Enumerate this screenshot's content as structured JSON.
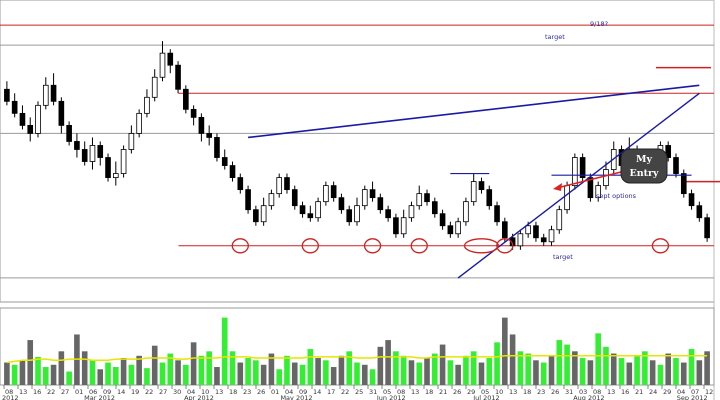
{
  "chart_data": {
    "type": "candlestick",
    "colors": {
      "candle": "#000000",
      "resistance": "#cc2222",
      "trendline": "#1a1aa6",
      "annotation_text": "#2a2aa8",
      "volume_up": "#33ee33",
      "volume_down": "#666666",
      "volume_avg": "#e6e600",
      "callout_bg": "#444444",
      "arrow": "#dd2222",
      "circle": "#cc2222"
    },
    "price_ylim": [
      0,
      300
    ],
    "volume_ylim": [
      0,
      100
    ],
    "candles": [
      [
        205,
        190,
        215,
        185
      ],
      [
        190,
        175,
        200,
        170
      ],
      [
        175,
        160,
        185,
        155
      ],
      [
        160,
        150,
        170,
        140
      ],
      [
        150,
        185,
        190,
        145
      ],
      [
        185,
        210,
        220,
        180
      ],
      [
        210,
        190,
        225,
        185
      ],
      [
        190,
        160,
        195,
        150
      ],
      [
        160,
        140,
        165,
        135
      ],
      [
        140,
        130,
        150,
        120
      ],
      [
        130,
        115,
        140,
        110
      ],
      [
        115,
        135,
        145,
        105
      ],
      [
        135,
        120,
        140,
        110
      ],
      [
        120,
        95,
        125,
        90
      ],
      [
        95,
        100,
        115,
        85
      ],
      [
        100,
        130,
        135,
        95
      ],
      [
        130,
        150,
        160,
        125
      ],
      [
        150,
        175,
        180,
        145
      ],
      [
        175,
        195,
        205,
        170
      ],
      [
        195,
        220,
        230,
        190
      ],
      [
        220,
        250,
        265,
        215
      ],
      [
        250,
        235,
        255,
        225
      ],
      [
        235,
        205,
        240,
        200
      ],
      [
        205,
        180,
        210,
        175
      ],
      [
        180,
        170,
        185,
        160
      ],
      [
        170,
        150,
        175,
        140
      ],
      [
        150,
        145,
        160,
        135
      ],
      [
        145,
        120,
        150,
        115
      ],
      [
        120,
        110,
        130,
        105
      ],
      [
        110,
        95,
        115,
        90
      ],
      [
        95,
        80,
        100,
        75
      ],
      [
        80,
        55,
        85,
        50
      ],
      [
        55,
        40,
        60,
        35
      ],
      [
        40,
        60,
        70,
        35
      ],
      [
        60,
        75,
        80,
        55
      ],
      [
        75,
        95,
        100,
        70
      ],
      [
        95,
        80,
        100,
        75
      ],
      [
        80,
        60,
        85,
        55
      ],
      [
        60,
        50,
        65,
        45
      ],
      [
        50,
        45,
        60,
        40
      ],
      [
        45,
        65,
        70,
        40
      ],
      [
        65,
        85,
        90,
        60
      ],
      [
        85,
        70,
        90,
        65
      ],
      [
        70,
        55,
        75,
        50
      ],
      [
        55,
        40,
        60,
        35
      ],
      [
        40,
        60,
        70,
        35
      ],
      [
        60,
        80,
        85,
        55
      ],
      [
        80,
        70,
        90,
        65
      ],
      [
        70,
        55,
        75,
        50
      ],
      [
        55,
        45,
        60,
        40
      ],
      [
        45,
        25,
        50,
        20
      ],
      [
        25,
        45,
        55,
        20
      ],
      [
        45,
        60,
        65,
        40
      ],
      [
        60,
        75,
        85,
        55
      ],
      [
        75,
        65,
        80,
        60
      ],
      [
        65,
        50,
        70,
        45
      ],
      [
        50,
        35,
        55,
        30
      ],
      [
        35,
        25,
        40,
        20
      ],
      [
        25,
        40,
        45,
        20
      ],
      [
        40,
        65,
        70,
        35
      ],
      [
        65,
        90,
        100,
        60
      ],
      [
        90,
        80,
        95,
        75
      ],
      [
        80,
        60,
        85,
        55
      ],
      [
        60,
        40,
        65,
        35
      ],
      [
        40,
        20,
        45,
        15
      ],
      [
        20,
        10,
        25,
        5
      ],
      [
        10,
        25,
        30,
        5
      ],
      [
        25,
        35,
        40,
        20
      ],
      [
        35,
        20,
        40,
        15
      ],
      [
        20,
        15,
        25,
        10
      ],
      [
        15,
        30,
        35,
        10
      ],
      [
        30,
        55,
        60,
        25
      ],
      [
        55,
        85,
        90,
        50
      ],
      [
        85,
        120,
        125,
        80
      ],
      [
        120,
        95,
        125,
        90
      ],
      [
        95,
        70,
        100,
        65
      ],
      [
        70,
        85,
        90,
        65
      ],
      [
        85,
        105,
        115,
        80
      ],
      [
        105,
        130,
        140,
        100
      ],
      [
        130,
        110,
        135,
        105
      ],
      [
        110,
        130,
        145,
        105
      ],
      [
        130,
        115,
        135,
        110
      ],
      [
        115,
        95,
        120,
        90
      ],
      [
        95,
        110,
        120,
        90
      ],
      [
        110,
        135,
        140,
        105
      ],
      [
        135,
        120,
        140,
        115
      ],
      [
        120,
        100,
        125,
        95
      ],
      [
        100,
        75,
        105,
        70
      ],
      [
        75,
        60,
        80,
        55
      ],
      [
        60,
        45,
        65,
        40
      ],
      [
        45,
        20,
        50,
        15
      ]
    ],
    "volume": [
      [
        20,
        false
      ],
      [
        18,
        true
      ],
      [
        22,
        false
      ],
      [
        40,
        false
      ],
      [
        25,
        true
      ],
      [
        16,
        true
      ],
      [
        18,
        false
      ],
      [
        30,
        false
      ],
      [
        12,
        true
      ],
      [
        45,
        false
      ],
      [
        30,
        false
      ],
      [
        22,
        true
      ],
      [
        14,
        false
      ],
      [
        20,
        true
      ],
      [
        16,
        true
      ],
      [
        24,
        false
      ],
      [
        18,
        true
      ],
      [
        26,
        false
      ],
      [
        15,
        true
      ],
      [
        35,
        false
      ],
      [
        20,
        true
      ],
      [
        28,
        true
      ],
      [
        22,
        false
      ],
      [
        18,
        true
      ],
      [
        38,
        false
      ],
      [
        26,
        true
      ],
      [
        30,
        true
      ],
      [
        16,
        false
      ],
      [
        60,
        true
      ],
      [
        30,
        true
      ],
      [
        20,
        false
      ],
      [
        24,
        true
      ],
      [
        22,
        true
      ],
      [
        18,
        false
      ],
      [
        28,
        false
      ],
      [
        14,
        true
      ],
      [
        26,
        true
      ],
      [
        20,
        false
      ],
      [
        18,
        true
      ],
      [
        32,
        true
      ],
      [
        24,
        false
      ],
      [
        22,
        true
      ],
      [
        16,
        false
      ],
      [
        26,
        false
      ],
      [
        30,
        true
      ],
      [
        20,
        true
      ],
      [
        18,
        false
      ],
      [
        14,
        true
      ],
      [
        34,
        false
      ],
      [
        40,
        false
      ],
      [
        30,
        true
      ],
      [
        26,
        true
      ],
      [
        22,
        false
      ],
      [
        20,
        true
      ],
      [
        24,
        false
      ],
      [
        28,
        true
      ],
      [
        36,
        false
      ],
      [
        22,
        true
      ],
      [
        18,
        false
      ],
      [
        26,
        true
      ],
      [
        30,
        true
      ],
      [
        20,
        false
      ],
      [
        24,
        true
      ],
      [
        38,
        true
      ],
      [
        60,
        false
      ],
      [
        45,
        false
      ],
      [
        30,
        true
      ],
      [
        28,
        true
      ],
      [
        22,
        false
      ],
      [
        20,
        true
      ],
      [
        26,
        false
      ],
      [
        40,
        true
      ],
      [
        36,
        true
      ],
      [
        30,
        false
      ],
      [
        24,
        true
      ],
      [
        22,
        false
      ],
      [
        46,
        true
      ],
      [
        34,
        true
      ],
      [
        28,
        false
      ],
      [
        24,
        true
      ],
      [
        20,
        false
      ],
      [
        26,
        true
      ],
      [
        30,
        true
      ],
      [
        22,
        false
      ],
      [
        18,
        true
      ],
      [
        28,
        false
      ],
      [
        24,
        true
      ],
      [
        20,
        false
      ],
      [
        32,
        true
      ],
      [
        22,
        false
      ],
      [
        30,
        false
      ]
    ],
    "volume_avg": [
      20,
      21,
      22,
      22,
      23,
      23,
      22,
      22,
      23,
      23,
      23,
      22,
      22,
      22,
      23,
      23,
      23,
      23,
      24,
      24,
      24,
      24,
      23,
      23,
      24,
      24,
      24,
      24,
      25,
      25,
      25,
      25,
      24,
      24,
      24,
      24,
      24,
      24,
      24,
      25,
      25,
      25,
      25,
      25,
      25,
      24,
      24,
      24,
      25,
      25,
      25,
      25,
      25,
      24,
      24,
      25,
      25,
      25,
      25,
      25,
      25,
      25,
      25,
      25,
      26,
      26,
      26,
      26,
      26,
      26,
      26,
      26,
      26,
      26,
      26,
      26,
      26,
      26,
      26,
      26,
      26,
      26,
      26,
      26,
      26,
      26,
      26,
      26,
      26,
      26,
      26
    ],
    "horizontal_lines": [
      {
        "y": 285,
        "x0": 0,
        "x1": 1,
        "color": "resistance"
      },
      {
        "y": 260,
        "x0": 0,
        "x1": 1,
        "color": "gray"
      },
      {
        "y": 200,
        "x0": 0.25,
        "x1": 1,
        "color": "resistance"
      },
      {
        "y": 150,
        "x0": 0,
        "x1": 1,
        "color": "gray"
      },
      {
        "y": 10,
        "x0": 0.25,
        "x1": 1,
        "color": "resistance"
      },
      {
        "y": -30,
        "x0": 0,
        "x1": 1,
        "color": "gray"
      }
    ],
    "annotations": {
      "date_label": "9/18?",
      "target_top": "target",
      "target_bottom": "target",
      "sept_options": "sept options",
      "callout_line1": "My",
      "callout_line2": "Entry"
    },
    "x_axis": {
      "day_ticks": [
        "08",
        "13",
        "16",
        "22",
        "27",
        "01",
        "06",
        "09",
        "14",
        "19",
        "22",
        "27",
        "30",
        "04",
        "10",
        "13",
        "18",
        "23",
        "26",
        "01",
        "04",
        "09",
        "14",
        "17",
        "22",
        "25",
        "31",
        "05",
        "08",
        "13",
        "18",
        "21",
        "26",
        "29",
        "05",
        "10",
        "13",
        "18",
        "23",
        "26",
        "31",
        "03",
        "08",
        "13",
        "16",
        "21",
        "24",
        "29",
        "04",
        "07",
        "12"
      ],
      "months": [
        {
          "label": "2012",
          "pos": 0.0
        },
        {
          "label": "Mar 2012",
          "pos": 0.115
        },
        {
          "label": "Apr 2012",
          "pos": 0.255
        },
        {
          "label": "May 2012",
          "pos": 0.39
        },
        {
          "label": "Jun 2012",
          "pos": 0.525
        },
        {
          "label": "Jul 2012",
          "pos": 0.66
        },
        {
          "label": "Aug 2012",
          "pos": 0.8
        },
        {
          "label": "Sep 2012",
          "pos": 0.945
        }
      ]
    }
  }
}
